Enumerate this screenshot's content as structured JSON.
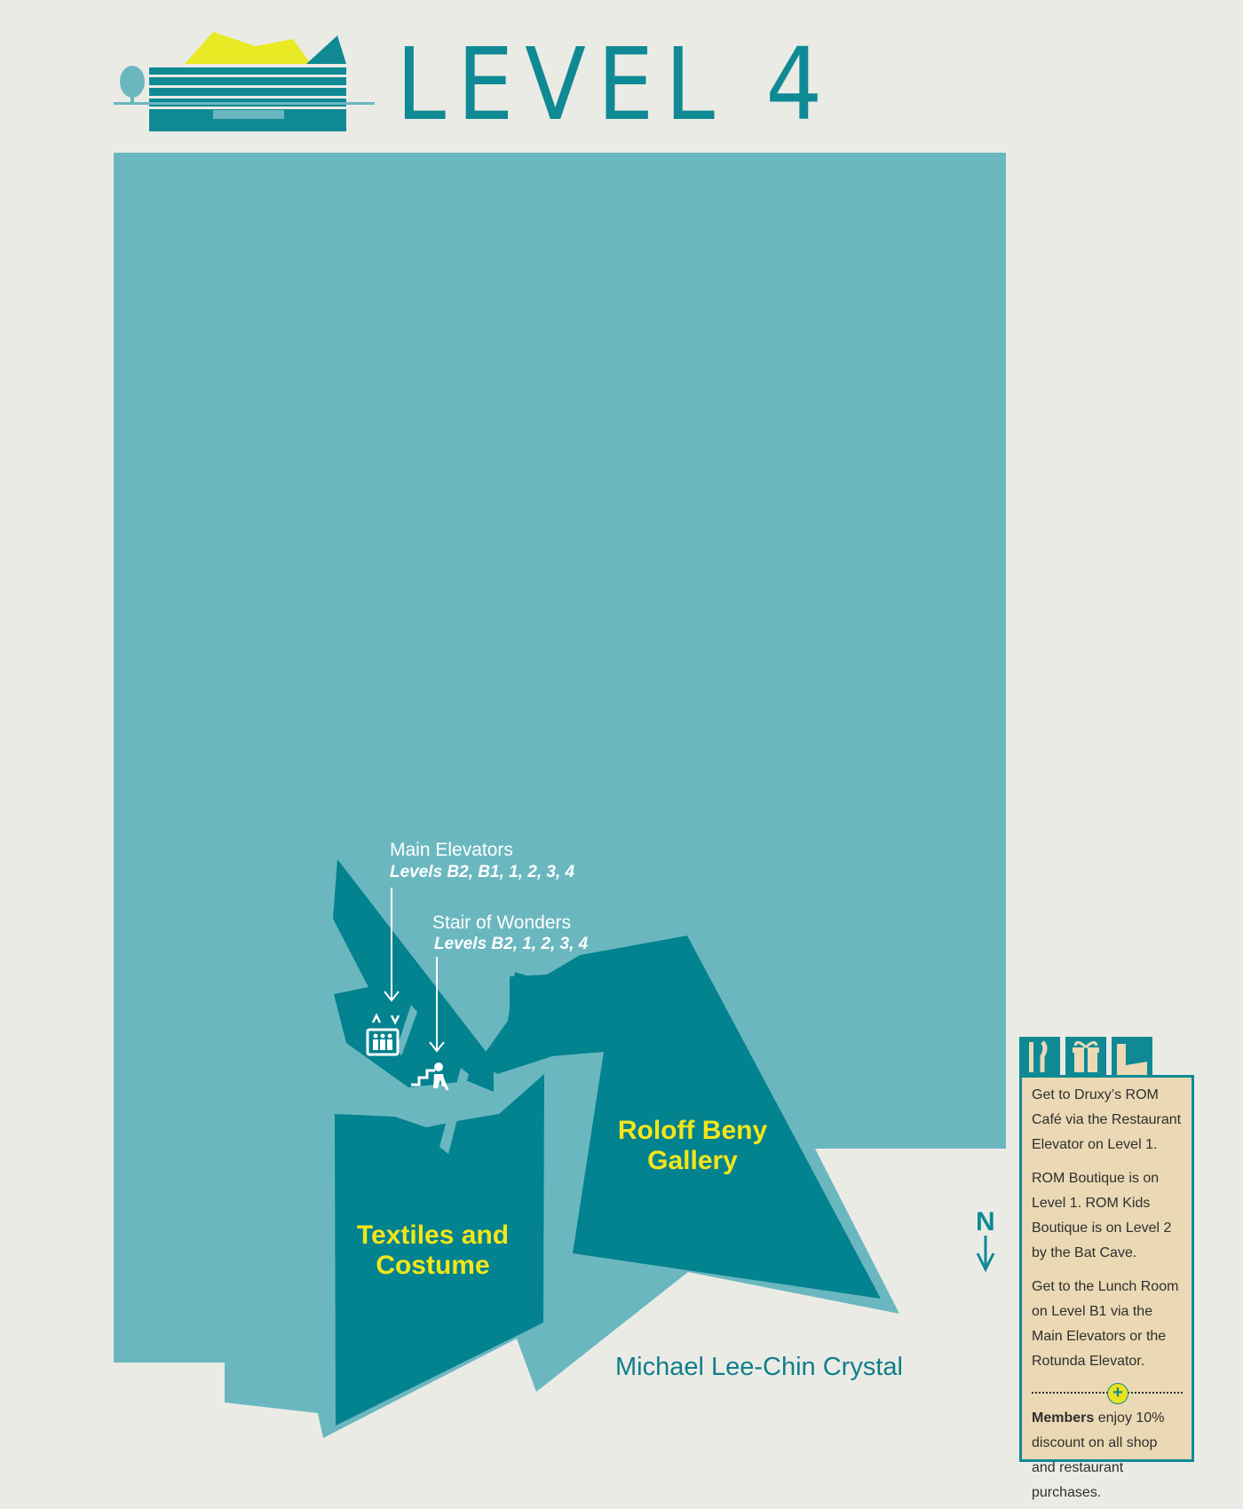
{
  "header": {
    "title": "LEVEL 4",
    "building_icon": "rom-building-icon"
  },
  "labels": {
    "main_elevators": {
      "title": "Main Elevators",
      "levels": "Levels B2, B1, 1, 2, 3, 4"
    },
    "stair_of_wonders": {
      "title": "Stair of Wonders",
      "levels": "Levels B2, 1, 2, 3, 4"
    },
    "galleries": {
      "roloff_line1": "Roloff Beny",
      "roloff_line2": "Gallery",
      "textiles_line1": "Textiles and",
      "textiles_line2": "Costume"
    },
    "crystal": "Michael Lee-Chin Crystal",
    "north": "N"
  },
  "info": {
    "tabs": [
      "cafe-icon",
      "gift-icon",
      "boutique-icon"
    ],
    "cafe": "Get to Druxy’s ROM Café via the Restaurant Elevator on Level 1.",
    "boutique": "ROM Boutique is on Level 1. ROM Kids Boutique is on Level 2 by the Bat Cave.",
    "lunch": "Get to the Lunch Room on Level B1 via the Main Elevators or the Rotunda Elevator.",
    "members_bold": "Members",
    "members_text": " enjoy 10% discount on all shop and restaurant purchases."
  },
  "colors": {
    "background": "#ebebe6",
    "floor": "#6bb7c0",
    "gallery": "#03828f",
    "accent": "#0f8a95",
    "gallery_label": "#f2e619",
    "info_bg": "#ead9b4"
  }
}
